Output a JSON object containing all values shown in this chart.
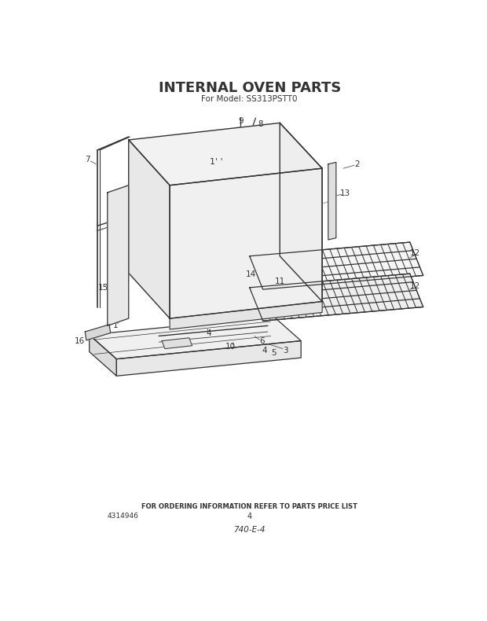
{
  "title": "INTERNAL OVEN PARTS",
  "subtitle": "For Model: SS313PSTT0",
  "footer_text": "FOR ORDERING INFORMATION REFER TO PARTS PRICE LIST",
  "part_number_left": "4314946",
  "page_number": "4",
  "diagram_code": "740-E-4",
  "bg_color": "#ffffff",
  "line_color": "#333333",
  "title_fontsize": 13,
  "subtitle_fontsize": 7.5,
  "footer_fontsize": 6,
  "label_fontsize": 7
}
